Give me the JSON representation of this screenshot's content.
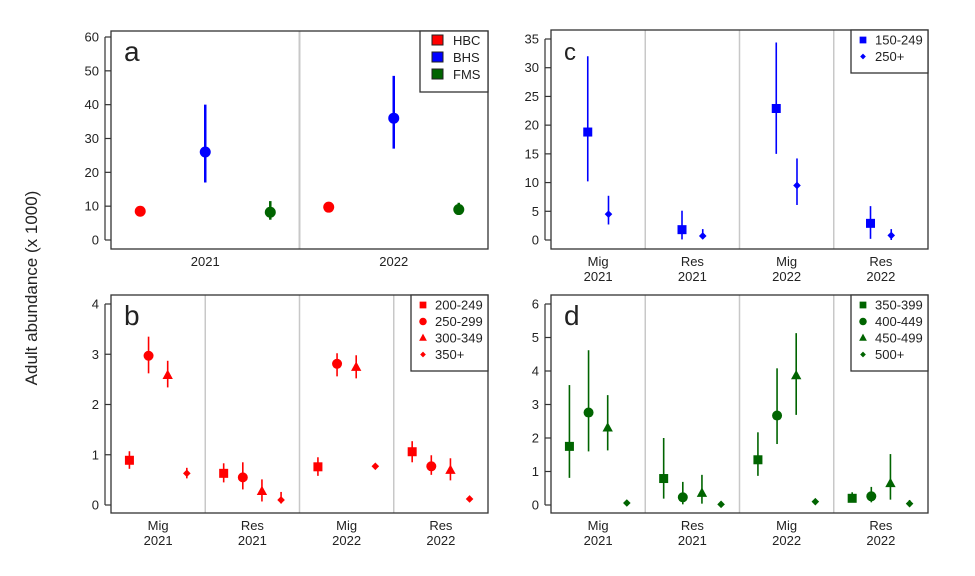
{
  "figure": {
    "ylabel": "Adult abundance (x 1000)"
  },
  "chart_data": [
    {
      "panel": "a",
      "type": "scatter",
      "ylim": [
        0,
        60
      ],
      "yticks": [
        0,
        10,
        20,
        30,
        40,
        50,
        60
      ],
      "categories": [
        "2021",
        "2022"
      ],
      "category_labels": [
        [
          "2021"
        ],
        [
          "2022"
        ]
      ],
      "legend": "top-right",
      "series": [
        {
          "name": "HBC",
          "color": "#ff0000",
          "marker": "circle",
          "values": [
            8.5,
            9.7
          ],
          "lower": [
            8.5,
            9.7
          ],
          "upper": [
            8.5,
            9.7
          ]
        },
        {
          "name": "BHS",
          "color": "#0000ff",
          "marker": "circle",
          "values": [
            26,
            36
          ],
          "lower": [
            17,
            27
          ],
          "upper": [
            40,
            48.5
          ]
        },
        {
          "name": "FMS",
          "color": "#006400",
          "marker": "circle",
          "values": [
            8.2,
            9.0
          ],
          "lower": [
            6,
            7.5
          ],
          "upper": [
            11.5,
            11
          ]
        }
      ]
    },
    {
      "panel": "b",
      "type": "scatter",
      "ylim": [
        0,
        4
      ],
      "yticks": [
        0,
        1,
        2,
        3,
        4
      ],
      "categories": [
        "Mig 2021",
        "Res 2021",
        "Mig 2022",
        "Res 2022"
      ],
      "category_labels": [
        [
          "Mig",
          "2021"
        ],
        [
          "Res",
          "2021"
        ],
        [
          "Mig",
          "2022"
        ],
        [
          "Res",
          "2022"
        ]
      ],
      "legend": "top-right",
      "series": [
        {
          "name": "200-249",
          "color": "#ff0000",
          "marker": "square",
          "values": [
            0.89,
            0.63,
            0.76,
            1.06
          ],
          "lower": [
            0.72,
            0.45,
            0.58,
            0.85
          ],
          "upper": [
            1.07,
            0.83,
            0.95,
            1.27
          ]
        },
        {
          "name": "250-299",
          "color": "#ff0000",
          "marker": "circle",
          "values": [
            2.97,
            0.55,
            2.81,
            0.77
          ],
          "lower": [
            2.62,
            0.31,
            2.56,
            0.6
          ],
          "upper": [
            3.35,
            0.85,
            3.02,
            0.99
          ]
        },
        {
          "name": "300-349",
          "color": "#ff0000",
          "marker": "triangle",
          "values": [
            2.58,
            0.27,
            2.74,
            0.69
          ],
          "lower": [
            2.34,
            0.07,
            2.52,
            0.49
          ],
          "upper": [
            2.87,
            0.51,
            2.98,
            0.93
          ]
        },
        {
          "name": "350+",
          "color": "#ff0000",
          "marker": "diamond",
          "values": [
            0.63,
            0.1,
            0.77,
            0.12
          ],
          "lower": [
            0.53,
            0.03,
            0.77,
            0.12
          ],
          "upper": [
            0.74,
            0.26,
            0.77,
            0.12
          ]
        }
      ]
    },
    {
      "panel": "c",
      "type": "scatter",
      "ylim": [
        0,
        35
      ],
      "yticks": [
        0,
        5,
        10,
        15,
        20,
        25,
        30,
        35
      ],
      "categories": [
        "Mig 2021",
        "Res 2021",
        "Mig 2022",
        "Res 2022"
      ],
      "category_labels": [
        [
          "Mig",
          "2021"
        ],
        [
          "Res",
          "2021"
        ],
        [
          "Mig",
          "2022"
        ],
        [
          "Res",
          "2022"
        ]
      ],
      "legend": "top-right",
      "series": [
        {
          "name": "150-249",
          "color": "#0000ff",
          "marker": "square",
          "values": [
            18.8,
            1.8,
            22.9,
            2.9
          ],
          "lower": [
            10.2,
            0.1,
            15,
            0.2
          ],
          "upper": [
            32,
            5.1,
            34.4,
            5.9
          ]
        },
        {
          "name": "250+",
          "color": "#0000ff",
          "marker": "diamond",
          "values": [
            4.5,
            0.7,
            9.5,
            0.8
          ],
          "lower": [
            2.7,
            0.2,
            6.1,
            0
          ],
          "upper": [
            7.7,
            1.9,
            14.2,
            1.9
          ]
        }
      ]
    },
    {
      "panel": "d",
      "type": "scatter",
      "ylim": [
        0,
        6
      ],
      "yticks": [
        0,
        1,
        2,
        3,
        4,
        5,
        6
      ],
      "categories": [
        "Mig 2021",
        "Res 2021",
        "Mig 2022",
        "Res 2022"
      ],
      "category_labels": [
        [
          "Mig",
          "2021"
        ],
        [
          "Res",
          "2021"
        ],
        [
          "Mig",
          "2022"
        ],
        [
          "Res",
          "2022"
        ]
      ],
      "legend": "top-right",
      "series": [
        {
          "name": "350-399",
          "color": "#006400",
          "marker": "square",
          "values": [
            1.75,
            0.79,
            1.35,
            0.2
          ],
          "lower": [
            0.81,
            0.19,
            0.87,
            0.1
          ],
          "upper": [
            3.58,
            2.0,
            2.17,
            0.38
          ]
        },
        {
          "name": "400-449",
          "color": "#006400",
          "marker": "circle",
          "values": [
            2.76,
            0.23,
            2.67,
            0.26
          ],
          "lower": [
            1.6,
            0.02,
            1.82,
            0.08
          ],
          "upper": [
            4.62,
            0.69,
            4.08,
            0.54
          ]
        },
        {
          "name": "450-499",
          "color": "#006400",
          "marker": "triangle",
          "values": [
            2.3,
            0.35,
            3.86,
            0.64
          ],
          "lower": [
            1.63,
            0.04,
            2.69,
            0.16
          ],
          "upper": [
            3.28,
            0.9,
            5.13,
            1.52
          ]
        },
        {
          "name": "500+",
          "color": "#006400",
          "marker": "diamond",
          "values": [
            0.06,
            0.02,
            0.1,
            0.04
          ],
          "lower": [
            0.06,
            0.02,
            0.1,
            0.0
          ],
          "upper": [
            0.06,
            0.02,
            0.1,
            0.15
          ]
        }
      ]
    }
  ]
}
